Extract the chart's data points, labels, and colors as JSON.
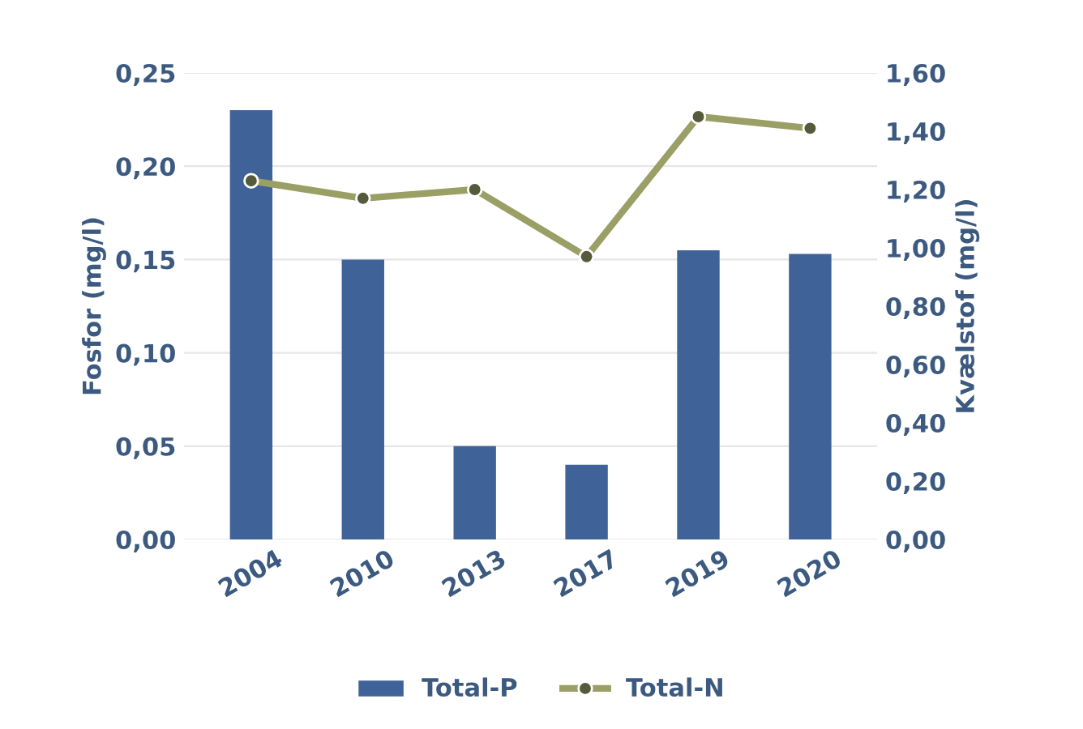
{
  "chart_data": {
    "type": "bar",
    "categories": [
      "2004",
      "2010",
      "2013",
      "2017",
      "2019",
      "2020"
    ],
    "series": [
      {
        "name": "Total-P",
        "color": "#3f6399",
        "values": [
          0.23,
          0.15,
          0.05,
          0.04,
          0.155,
          0.153
        ]
      },
      {
        "name": "Total-N",
        "type": "line",
        "axis": "y2",
        "color": "#9aa065",
        "marker": "circle",
        "values": [
          1.23,
          1.17,
          1.2,
          0.97,
          1.45,
          1.41
        ]
      }
    ],
    "ylabel": "Fosfor (mg/l)",
    "y2label": "Kvælstof (mg/l)",
    "ylim": [
      0,
      0.25
    ],
    "yticks": [
      {
        "value": 0,
        "label": "0,00"
      },
      {
        "value": 0.05,
        "label": "0,05"
      },
      {
        "value": 0.1,
        "label": "0,10"
      },
      {
        "value": 0.15,
        "label": "0,15"
      },
      {
        "value": 0.2,
        "label": "0,20"
      },
      {
        "value": 0.25,
        "label": "0,25"
      }
    ],
    "y2lim": [
      0,
      1.6
    ],
    "y2ticks": [
      {
        "value": 0,
        "label": "0,00"
      },
      {
        "value": 0.2,
        "label": "0,20"
      },
      {
        "value": 0.4,
        "label": "0,40"
      },
      {
        "value": 0.6,
        "label": "0,60"
      },
      {
        "value": 0.8,
        "label": "0,80"
      },
      {
        "value": 1.0,
        "label": "1,00"
      },
      {
        "value": 1.2,
        "label": "1,20"
      },
      {
        "value": 1.4,
        "label": "1,40"
      },
      {
        "value": 1.6,
        "label": "1,60"
      }
    ],
    "grid": "y",
    "legend": "bottom"
  }
}
